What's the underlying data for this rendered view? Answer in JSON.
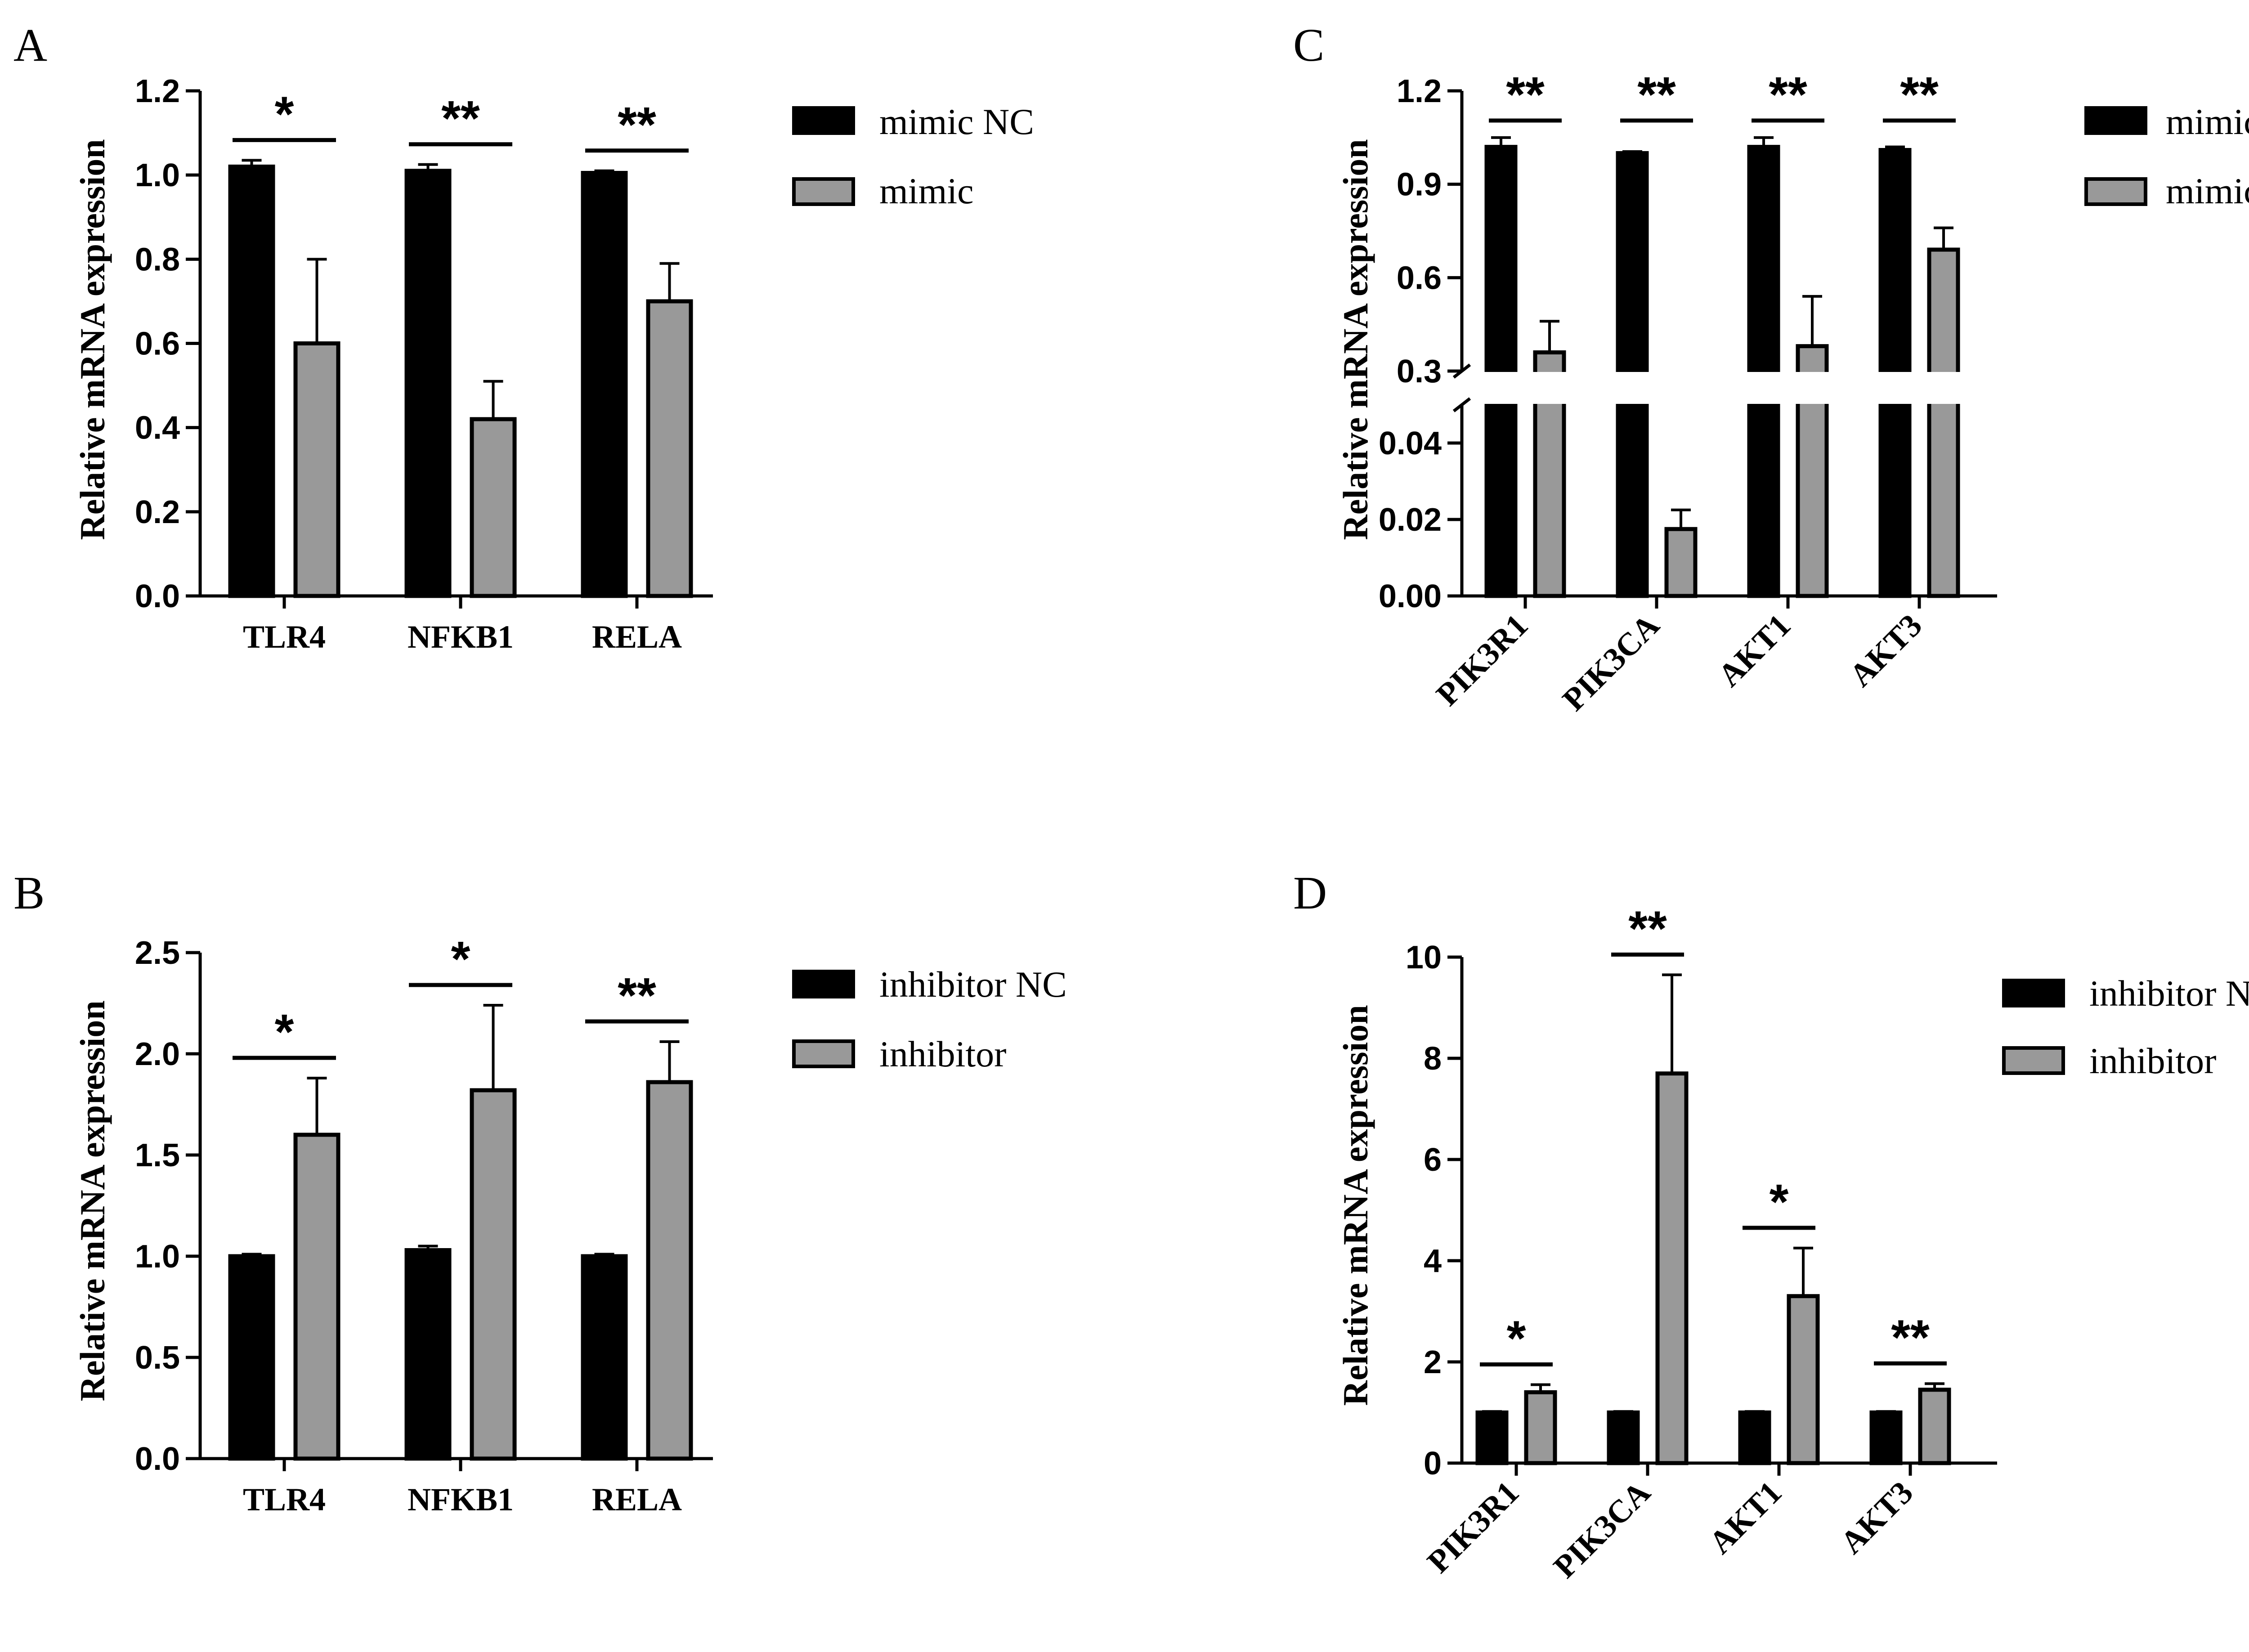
{
  "colors": {
    "control": "#000000",
    "treatment": "#999999",
    "axis": "#000000"
  },
  "chart_data": [
    {
      "panel": "A",
      "type": "bar",
      "title": "",
      "xlabel": "",
      "ylabel": "Relative mRNA expression",
      "ylim": [
        0,
        1.2
      ],
      "yticks": [
        "0.0",
        "0.2",
        "0.4",
        "0.6",
        "0.8",
        "1.0",
        "1.2"
      ],
      "ytick_values": [
        0,
        0.2,
        0.4,
        0.6,
        0.8,
        1.0,
        1.2
      ],
      "categories": [
        "TLR4",
        "NFKB1",
        "RELA"
      ],
      "series": [
        {
          "name": "mimic NC",
          "values": [
            1.02,
            1.01,
            1.005
          ],
          "errors": [
            0.015,
            0.015,
            0.005
          ]
        },
        {
          "name": "mimic",
          "values": [
            0.6,
            0.42,
            0.7
          ],
          "errors": [
            0.2,
            0.09,
            0.09
          ]
        }
      ],
      "significance": [
        "*",
        "**",
        "**"
      ]
    },
    {
      "panel": "B",
      "type": "bar",
      "title": "",
      "xlabel": "",
      "ylabel": "Relative mRNA expression",
      "ylim": [
        0,
        2.5
      ],
      "yticks": [
        "0.0",
        "0.5",
        "1.0",
        "1.5",
        "2.0",
        "2.5"
      ],
      "ytick_values": [
        0,
        0.5,
        1.0,
        1.5,
        2.0,
        2.5
      ],
      "categories": [
        "TLR4",
        "NFKB1",
        "RELA"
      ],
      "series": [
        {
          "name": "inhibitor NC",
          "values": [
            1.0,
            1.03,
            1.0
          ],
          "errors": [
            0.01,
            0.02,
            0.01
          ]
        },
        {
          "name": "inhibitor",
          "values": [
            1.6,
            1.82,
            1.86
          ],
          "errors": [
            0.28,
            0.42,
            0.2
          ]
        }
      ],
      "significance": [
        "*",
        "*",
        "**"
      ]
    },
    {
      "panel": "C",
      "type": "bar",
      "title": "",
      "xlabel": "",
      "ylabel": "Relative mRNA expression",
      "axis_break": true,
      "ylim_lower": [
        0,
        0.05
      ],
      "ylim_upper": [
        0.3,
        1.2
      ],
      "yticks": [
        "0.00",
        "0.02",
        "0.04",
        "0.3",
        "0.6",
        "0.9",
        "1.2"
      ],
      "ytick_values": [
        0,
        0.02,
        0.04,
        0.3,
        0.6,
        0.9,
        1.2
      ],
      "categories": [
        "PIK3R1",
        "PIK3CA",
        "AKT1",
        "AKT3"
      ],
      "series": [
        {
          "name": "mimic NC",
          "values": [
            1.02,
            1.0,
            1.02,
            1.01
          ],
          "errors": [
            0.03,
            0.005,
            0.03,
            0.01
          ]
        },
        {
          "name": "mimic",
          "values": [
            0.36,
            0.0175,
            0.38,
            0.69
          ],
          "errors": [
            0.1,
            0.005,
            0.16,
            0.07
          ]
        }
      ],
      "significance": [
        "**",
        "**",
        "**",
        "**"
      ]
    },
    {
      "panel": "D",
      "type": "bar",
      "title": "",
      "xlabel": "",
      "ylabel": "Relative mRNA expression",
      "ylim": [
        0,
        10
      ],
      "yticks": [
        "0",
        "2",
        "4",
        "6",
        "8",
        "10"
      ],
      "ytick_values": [
        0,
        2,
        4,
        6,
        8,
        10
      ],
      "categories": [
        "PIK3R1",
        "PIK3CA",
        "AKT1",
        "AKT3"
      ],
      "series": [
        {
          "name": "inhibitor NC",
          "values": [
            1.0,
            1.0,
            1.0,
            1.0
          ],
          "errors": [
            0.02,
            0.02,
            0.02,
            0.02
          ]
        },
        {
          "name": "inhibitor",
          "values": [
            1.4,
            7.7,
            3.3,
            1.45
          ],
          "errors": [
            0.15,
            1.95,
            0.95,
            0.12
          ]
        }
      ],
      "significance": [
        "*",
        "**",
        "*",
        "**"
      ]
    }
  ]
}
